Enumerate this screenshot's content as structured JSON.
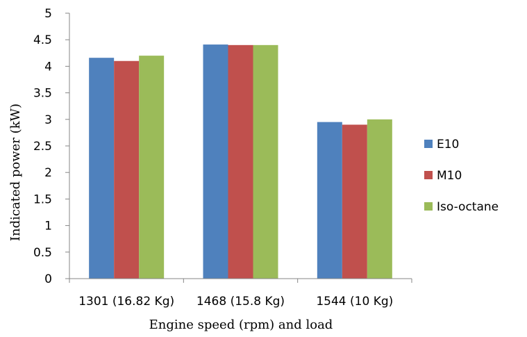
{
  "chart_data": {
    "type": "bar",
    "categories": [
      "1301 (16.82 Kg)",
      "1468 (15.8 Kg)",
      "1544 (10 Kg)"
    ],
    "series": [
      {
        "name": "E10",
        "values": [
          4.16,
          4.41,
          2.95
        ],
        "color": "#4F81BD"
      },
      {
        "name": "M10",
        "values": [
          4.1,
          4.4,
          2.9
        ],
        "color": "#C0504D"
      },
      {
        "name": "Iso-octane",
        "values": [
          4.2,
          4.4,
          3.0
        ],
        "color": "#9BBB59"
      }
    ],
    "xlabel": "Engine speed (rpm) and load",
    "ylabel": "Indicated power (kW)",
    "ylim": [
      0,
      5
    ],
    "yticks": [
      "0",
      "0.5",
      "1",
      "1.5",
      "2",
      "2.5",
      "3",
      "3.5",
      "4",
      "4.5",
      "5"
    ],
    "grid": false,
    "legend_position": "right"
  }
}
